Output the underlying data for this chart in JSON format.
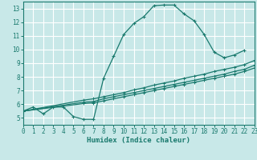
{
  "xlabel": "Humidex (Indice chaleur)",
  "bg_color": "#c8e8e8",
  "grid_color": "#ffffff",
  "line_color": "#1a7a6e",
  "xlim": [
    0,
    23
  ],
  "ylim": [
    4.5,
    13.5
  ],
  "xticks": [
    0,
    1,
    2,
    3,
    4,
    5,
    6,
    7,
    8,
    9,
    10,
    11,
    12,
    13,
    14,
    15,
    16,
    17,
    18,
    19,
    20,
    21,
    22,
    23
  ],
  "yticks": [
    5,
    6,
    7,
    8,
    9,
    10,
    11,
    12,
    13
  ],
  "curve1_x": [
    0,
    1,
    2,
    3,
    4,
    5,
    6,
    7,
    8,
    9,
    10,
    11,
    12,
    13,
    14,
    15,
    16,
    17,
    18,
    19,
    20,
    21,
    22
  ],
  "curve1_y": [
    5.5,
    5.8,
    5.3,
    5.8,
    5.8,
    5.1,
    4.9,
    4.9,
    7.9,
    9.5,
    11.1,
    11.9,
    12.4,
    13.2,
    13.25,
    13.25,
    12.6,
    12.1,
    11.1,
    9.8,
    9.4,
    9.6,
    9.95
  ],
  "curve2_x": [
    0,
    6,
    7,
    8,
    9,
    10,
    11,
    12,
    13,
    14,
    15,
    16,
    17,
    18,
    19,
    20,
    21,
    22,
    23
  ],
  "curve2_y": [
    5.5,
    6.3,
    6.4,
    6.55,
    6.7,
    6.85,
    7.05,
    7.2,
    7.4,
    7.55,
    7.7,
    7.9,
    8.05,
    8.2,
    8.4,
    8.55,
    8.7,
    8.9,
    9.2
  ],
  "curve3_x": [
    0,
    6,
    7,
    8,
    9,
    10,
    11,
    12,
    13,
    14,
    15,
    16,
    17,
    18,
    19,
    20,
    21,
    22,
    23
  ],
  "curve3_y": [
    5.5,
    6.15,
    6.2,
    6.4,
    6.55,
    6.7,
    6.85,
    7.0,
    7.15,
    7.3,
    7.45,
    7.6,
    7.75,
    7.9,
    8.05,
    8.2,
    8.4,
    8.55,
    8.85
  ],
  "curve4_x": [
    0,
    6,
    7,
    8,
    9,
    10,
    11,
    12,
    13,
    14,
    15,
    16,
    17,
    18,
    19,
    20,
    21,
    22,
    23
  ],
  "curve4_y": [
    5.5,
    6.05,
    6.1,
    6.25,
    6.4,
    6.55,
    6.7,
    6.85,
    7.0,
    7.15,
    7.3,
    7.45,
    7.6,
    7.75,
    7.9,
    8.05,
    8.2,
    8.4,
    8.65
  ]
}
